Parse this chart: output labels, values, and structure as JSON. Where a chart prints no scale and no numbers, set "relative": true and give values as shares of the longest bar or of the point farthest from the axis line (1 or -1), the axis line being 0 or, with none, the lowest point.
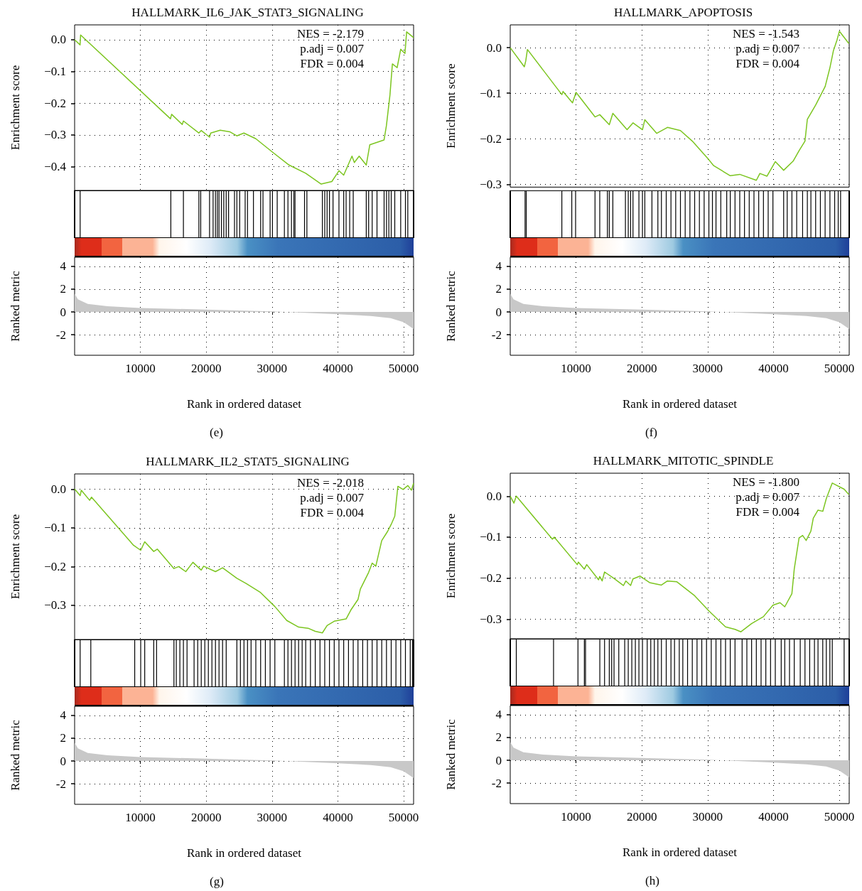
{
  "chart_data": [
    {
      "type": "line",
      "title": "HALLMARK_IL6_JAK_STAT3_SIGNALING",
      "ylabel": "Enrichment score",
      "annotations": [
        "NES = -2.179",
        "p.adj = 0.007",
        "FDR = 0.004"
      ],
      "xlim": [
        0,
        51500
      ],
      "xticks": [
        10000,
        20000,
        30000,
        40000,
        50000
      ],
      "ylim": [
        -0.475,
        0.047
      ],
      "yticks": [
        {
          "value": 0,
          "label": "0.0"
        },
        {
          "value": -0.1,
          "label": "−0.1"
        },
        {
          "value": -0.2,
          "label": "−0.2"
        },
        {
          "value": -0.3,
          "label": "−0.3"
        },
        {
          "value": -0.4,
          "label": "−0.4"
        }
      ],
      "tick_labels": "y",
      "grid": true,
      "marker": "none",
      "line_style": "solid",
      "series": [
        {
          "color": "#7cc520",
          "x": [
            0,
            830,
            910,
            14560,
            14740,
            16350,
            16530,
            18870,
            19230,
            20500,
            20680,
            22120,
            23560,
            24640,
            25720,
            27530,
            30050,
            32580,
            35110,
            37460,
            39080,
            40160,
            40880,
            42140,
            42500,
            43230,
            44310,
            44850,
            47010,
            47370,
            47910,
            48280,
            49000,
            49540,
            50190,
            50440,
            51500
          ],
          "values": [
            0.0,
            -0.016,
            0.015,
            -0.249,
            -0.235,
            -0.267,
            -0.256,
            -0.294,
            -0.286,
            -0.307,
            -0.294,
            -0.285,
            -0.29,
            -0.303,
            -0.294,
            -0.312,
            -0.354,
            -0.395,
            -0.421,
            -0.455,
            -0.447,
            -0.413,
            -0.427,
            -0.367,
            -0.387,
            -0.367,
            -0.395,
            -0.331,
            -0.316,
            -0.271,
            -0.174,
            -0.076,
            -0.088,
            -0.03,
            -0.043,
            0.025,
            0.007
          ]
        }
      ]
    },
    {
      "type": "bar",
      "relative": true,
      "xlim": [
        0,
        51500
      ],
      "tick_labels": false,
      "color": "#000000",
      "x": [
        840,
        14620,
        16530,
        18880,
        19160,
        20500,
        21040,
        21400,
        21690,
        21940,
        22300,
        22660,
        23030,
        23390,
        24290,
        24650,
        25080,
        25910,
        26270,
        27170,
        28260,
        28620,
        29700,
        30060,
        30780,
        31870,
        32410,
        32950,
        33310,
        33490,
        34930,
        35290,
        37640,
        38000,
        38360,
        38720,
        39260,
        40160,
        40880,
        41250,
        41790,
        42330,
        44310,
        44670,
        45210,
        45940,
        47020,
        47380,
        47740,
        48100,
        48640,
        49540,
        50260,
        50620
      ],
      "values": [
        1,
        1,
        1,
        1,
        1,
        1,
        1,
        1,
        1,
        1,
        1,
        1,
        1,
        1,
        1,
        1,
        1,
        1,
        1,
        1,
        1,
        1,
        1,
        1,
        1,
        1,
        1,
        1,
        1,
        1,
        1,
        1,
        1,
        1,
        1,
        1,
        1,
        1,
        1,
        1,
        1,
        1,
        1,
        1,
        1,
        1,
        1,
        1,
        1,
        1,
        1,
        1,
        1,
        1
      ]
    },
    {
      "type": "area",
      "xlabel": "Rank in ordered dataset",
      "ylabel": "Ranked metric",
      "annotations": [
        "(e)"
      ],
      "xlim": [
        0,
        51500
      ],
      "xticks": [
        10000,
        20000,
        30000,
        40000,
        50000
      ],
      "ylim": [
        -3.8,
        4.8
      ],
      "yticks": [
        4,
        2,
        0,
        -2
      ],
      "grid": true,
      "color": "#c8c8c8",
      "x": [
        0,
        500,
        2000,
        5000,
        10000,
        20000,
        30000,
        40000,
        45000,
        48000,
        50000,
        51500
      ],
      "values": [
        1.6,
        1.1,
        0.7,
        0.5,
        0.35,
        0.2,
        0.05,
        -0.2,
        -0.35,
        -0.55,
        -0.9,
        -1.5
      ]
    },
    {
      "type": "line",
      "title": "HALLMARK_APOPTOSIS",
      "ylabel": "Enrichment score",
      "annotations": [
        "NES = -1.543",
        "p.adj = 0.007",
        "FDR = 0.004"
      ],
      "xlim": [
        0,
        51500
      ],
      "xticks": [
        10000,
        20000,
        30000,
        40000,
        50000
      ],
      "ylim": [
        -0.306,
        0.05
      ],
      "yticks": [
        {
          "value": 0,
          "label": "0.0"
        },
        {
          "value": -0.1,
          "label": "−0.1"
        },
        {
          "value": -0.2,
          "label": "−0.2"
        },
        {
          "value": -0.3,
          "label": "−0.3"
        }
      ],
      "tick_labels": "y",
      "grid": true,
      "marker": "none",
      "line_style": "solid",
      "series": [
        {
          "color": "#7cc520",
          "x": [
            0,
            2140,
            2360,
            2610,
            7840,
            8020,
            9460,
            10000,
            12880,
            13600,
            15050,
            15590,
            17750,
            18650,
            20090,
            20450,
            22260,
            23880,
            25860,
            27660,
            30180,
            30910,
            33430,
            34870,
            37390,
            37930,
            39010,
            40280,
            41540,
            42980,
            43880,
            44780,
            45140,
            46400,
            47850,
            48570,
            49110,
            49650,
            50010,
            51450
          ],
          "values": [
            0,
            -0.042,
            -0.029,
            -0.004,
            -0.103,
            -0.096,
            -0.121,
            -0.098,
            -0.152,
            -0.147,
            -0.169,
            -0.144,
            -0.18,
            -0.165,
            -0.18,
            -0.158,
            -0.188,
            -0.175,
            -0.182,
            -0.205,
            -0.246,
            -0.259,
            -0.281,
            -0.278,
            -0.291,
            -0.276,
            -0.282,
            -0.25,
            -0.269,
            -0.249,
            -0.226,
            -0.205,
            -0.157,
            -0.126,
            -0.085,
            -0.044,
            -0.006,
            0.017,
            0.036,
            0.009
          ]
        }
      ]
    },
    {
      "type": "bar",
      "relative": true,
      "xlim": [
        0,
        51500
      ],
      "tick_labels": false,
      "color": "#000000",
      "x": [
        2250,
        2430,
        7840,
        9350,
        9930,
        12880,
        13600,
        14760,
        15050,
        15590,
        17500,
        17930,
        18290,
        18650,
        19550,
        20090,
        20450,
        21530,
        22430,
        22970,
        23700,
        24420,
        25140,
        25860,
        26580,
        27300,
        28020,
        28740,
        29460,
        30180,
        30720,
        31260,
        31990,
        32890,
        33430,
        34150,
        34870,
        35590,
        36310,
        37030,
        37750,
        38470,
        39190,
        39910,
        41540,
        42080,
        42800,
        43520,
        44420,
        45140,
        45680,
        46400,
        47120,
        47840,
        48570,
        49290,
        49830,
        50190
      ],
      "values": [
        1,
        1,
        1,
        1,
        1,
        1,
        1,
        1,
        1,
        1,
        1,
        1,
        1,
        1,
        1,
        1,
        1,
        1,
        1,
        1,
        1,
        1,
        1,
        1,
        1,
        1,
        1,
        1,
        1,
        1,
        1,
        1,
        1,
        1,
        1,
        1,
        1,
        1,
        1,
        1,
        1,
        1,
        1,
        1,
        1,
        1,
        1,
        1,
        1,
        1,
        1,
        1,
        1,
        1,
        1,
        1,
        1,
        1
      ]
    },
    {
      "type": "area",
      "xlabel": "Rank in ordered dataset",
      "ylabel": "Ranked metric",
      "annotations": [
        "(f)"
      ],
      "xlim": [
        0,
        51500
      ],
      "xticks": [
        10000,
        20000,
        30000,
        40000,
        50000
      ],
      "ylim": [
        -3.8,
        4.8
      ],
      "yticks": [
        4,
        2,
        0,
        -2
      ],
      "grid": true,
      "color": "#c8c8c8",
      "x": [
        0,
        500,
        2000,
        5000,
        10000,
        20000,
        30000,
        40000,
        45000,
        48000,
        50000,
        51500
      ],
      "values": [
        1.6,
        1.1,
        0.7,
        0.5,
        0.35,
        0.2,
        0.05,
        -0.2,
        -0.35,
        -0.55,
        -0.9,
        -1.5
      ]
    },
    {
      "type": "line",
      "title": "HALLMARK_IL2_STAT5_SIGNALING",
      "ylabel": "Enrichment score",
      "annotations": [
        "NES = -2.018",
        "p.adj = 0.007",
        "FDR = 0.004"
      ],
      "xlim": [
        0,
        51500
      ],
      "xticks": [
        10000,
        20000,
        30000,
        40000,
        50000
      ],
      "ylim": [
        -0.388,
        0.039
      ],
      "yticks": [
        {
          "value": 0,
          "label": "0.0"
        },
        {
          "value": -0.1,
          "label": "−0.1"
        },
        {
          "value": -0.2,
          "label": "−0.2"
        },
        {
          "value": -0.3,
          "label": "−0.3"
        }
      ],
      "tick_labels": "y",
      "grid": true,
      "marker": "none",
      "line_style": "solid",
      "series": [
        {
          "color": "#7cc520",
          "x": [
            0,
            840,
            1020,
            2280,
            2570,
            8950,
            10040,
            10650,
            12020,
            12560,
            15090,
            15810,
            16890,
            17970,
            19240,
            19600,
            21400,
            22480,
            24650,
            26090,
            28250,
            30420,
            32230,
            34030,
            35470,
            36560,
            37640,
            38360,
            39440,
            41250,
            41970,
            43050,
            43410,
            44670,
            45210,
            45760,
            46660,
            47560,
            48100,
            48640,
            49110,
            49900,
            50630,
            51170,
            51500
          ],
          "values": [
            0,
            -0.017,
            -0.003,
            -0.029,
            -0.021,
            -0.145,
            -0.158,
            -0.136,
            -0.161,
            -0.155,
            -0.205,
            -0.2,
            -0.213,
            -0.189,
            -0.209,
            -0.199,
            -0.213,
            -0.203,
            -0.23,
            -0.244,
            -0.267,
            -0.303,
            -0.339,
            -0.356,
            -0.359,
            -0.367,
            -0.371,
            -0.352,
            -0.341,
            -0.335,
            -0.312,
            -0.285,
            -0.258,
            -0.215,
            -0.191,
            -0.199,
            -0.133,
            -0.109,
            -0.091,
            -0.07,
            0.007,
            -0.001,
            0.009,
            -0.003,
            0.015
          ]
        }
      ]
    },
    {
      "type": "bar",
      "relative": true,
      "xlim": [
        0,
        51500
      ],
      "tick_labels": false,
      "color": "#000000",
      "x": [
        840,
        2460,
        9130,
        10040,
        10650,
        12020,
        12450,
        15090,
        15450,
        15990,
        16530,
        17080,
        18150,
        18700,
        19240,
        19780,
        20320,
        20860,
        21400,
        21940,
        22480,
        23030,
        24650,
        25190,
        25730,
        26270,
        26810,
        27530,
        28260,
        28980,
        29700,
        30420,
        31870,
        32410,
        32950,
        33490,
        34030,
        34570,
        35110,
        35830,
        36560,
        37280,
        38000,
        38720,
        39440,
        40160,
        40880,
        41610,
        42330,
        43050,
        43770,
        44490,
        45210,
        45940,
        46660,
        47380,
        48100,
        48820,
        49540,
        50260,
        50990,
        51350
      ],
      "values": [
        1,
        1,
        1,
        1,
        1,
        1,
        1,
        1,
        1,
        1,
        1,
        1,
        1,
        1,
        1,
        1,
        1,
        1,
        1,
        1,
        1,
        1,
        1,
        1,
        1,
        1,
        1,
        1,
        1,
        1,
        1,
        1,
        1,
        1,
        1,
        1,
        1,
        1,
        1,
        1,
        1,
        1,
        1,
        1,
        1,
        1,
        1,
        1,
        1,
        1,
        1,
        1,
        1,
        1,
        1,
        1,
        1,
        1,
        1,
        1,
        1,
        1
      ]
    },
    {
      "type": "area",
      "xlabel": "Rank in ordered dataset",
      "ylabel": "Ranked metric",
      "annotations": [
        "(g)"
      ],
      "xlim": [
        0,
        51500
      ],
      "xticks": [
        10000,
        20000,
        30000,
        40000,
        50000
      ],
      "ylim": [
        -3.8,
        4.8
      ],
      "yticks": [
        4,
        2,
        0,
        -2
      ],
      "grid": true,
      "color": "#c8c8c8",
      "x": [
        0,
        500,
        2000,
        5000,
        10000,
        20000,
        30000,
        40000,
        45000,
        48000,
        50000,
        51500
      ],
      "values": [
        1.6,
        1.1,
        0.7,
        0.5,
        0.35,
        0.2,
        0.05,
        -0.2,
        -0.35,
        -0.55,
        -0.9,
        -1.5
      ]
    },
    {
      "type": "line",
      "title": "HALLMARK_MITOTIC_SPINDLE",
      "ylabel": "Enrichment score",
      "annotations": [
        "NES = -1.800",
        "p.adj = 0.007",
        "FDR = 0.004"
      ],
      "xlim": [
        0,
        51500
      ],
      "xticks": [
        10000,
        20000,
        30000,
        40000,
        50000
      ],
      "ylim": [
        -0.348,
        0.056
      ],
      "yticks": [
        {
          "value": 0,
          "label": "0.0"
        },
        {
          "value": -0.1,
          "label": "−0.1"
        },
        {
          "value": -0.2,
          "label": "−0.2"
        },
        {
          "value": -0.3,
          "label": "−0.3"
        }
      ],
      "tick_labels": "y",
      "grid": true,
      "marker": "none",
      "line_style": "solid",
      "series": [
        {
          "color": "#7cc520",
          "x": [
            0,
            560,
            920,
            6400,
            6690,
            10180,
            10360,
            11260,
            11620,
            13420,
            13600,
            13970,
            14330,
            15770,
            17210,
            17570,
            18290,
            18650,
            19730,
            21170,
            22970,
            23880,
            25320,
            28020,
            30180,
            32710,
            34150,
            35050,
            36670,
            38470,
            39910,
            40990,
            41710,
            42790,
            43150,
            43880,
            44420,
            44960,
            45680,
            46040,
            46760,
            47490,
            48020,
            48490,
            48930,
            50730,
            51450
          ],
          "values": [
            0,
            -0.017,
            0,
            -0.105,
            -0.1,
            -0.167,
            -0.161,
            -0.178,
            -0.167,
            -0.204,
            -0.196,
            -0.207,
            -0.185,
            -0.201,
            -0.218,
            -0.207,
            -0.218,
            -0.202,
            -0.195,
            -0.211,
            -0.217,
            -0.207,
            -0.209,
            -0.243,
            -0.28,
            -0.319,
            -0.325,
            -0.331,
            -0.311,
            -0.294,
            -0.266,
            -0.26,
            -0.27,
            -0.238,
            -0.178,
            -0.102,
            -0.096,
            -0.108,
            -0.085,
            -0.054,
            -0.034,
            -0.037,
            -0.006,
            0.014,
            0.032,
            0.017,
            0.004
          ]
        }
      ]
    },
    {
      "type": "bar",
      "relative": true,
      "xlim": [
        0,
        51500
      ],
      "tick_labels": false,
      "color": "#000000",
      "x": [
        920,
        6580,
        10290,
        11260,
        11440,
        13610,
        14330,
        15050,
        15410,
        15770,
        16490,
        17390,
        17930,
        18470,
        19010,
        19550,
        20090,
        20810,
        21350,
        21890,
        22430,
        22970,
        23700,
        24420,
        24960,
        25680,
        26220,
        26940,
        27660,
        28380,
        29100,
        29820,
        30540,
        31260,
        31990,
        32710,
        33430,
        34150,
        35230,
        35950,
        36670,
        37390,
        38110,
        38830,
        39550,
        40270,
        41170,
        41710,
        42430,
        43150,
        44060,
        44780,
        45500,
        46220,
        46760,
        47480,
        48020,
        48560,
        48930,
        50730
      ],
      "values": [
        1,
        1,
        1,
        1,
        1,
        1,
        1,
        1,
        1,
        1,
        1,
        1,
        1,
        1,
        1,
        1,
        1,
        1,
        1,
        1,
        1,
        1,
        1,
        1,
        1,
        1,
        1,
        1,
        1,
        1,
        1,
        1,
        1,
        1,
        1,
        1,
        1,
        1,
        1,
        1,
        1,
        1,
        1,
        1,
        1,
        1,
        1,
        1,
        1,
        1,
        1,
        1,
        1,
        1,
        1,
        1,
        1,
        1,
        1,
        1
      ]
    },
    {
      "type": "area",
      "xlabel": "Rank in ordered dataset",
      "ylabel": "Ranked metric",
      "annotations": [
        "(h)"
      ],
      "xlim": [
        0,
        51500
      ],
      "xticks": [
        10000,
        20000,
        30000,
        40000,
        50000
      ],
      "ylim": [
        -3.8,
        4.8
      ],
      "yticks": [
        4,
        2,
        0,
        -2
      ],
      "grid": true,
      "color": "#c8c8c8",
      "x": [
        0,
        500,
        2000,
        5000,
        10000,
        20000,
        30000,
        40000,
        45000,
        48000,
        50000,
        51500
      ],
      "values": [
        1.6,
        1.1,
        0.7,
        0.5,
        0.35,
        0.2,
        0.05,
        -0.2,
        -0.35,
        -0.55,
        -0.9,
        -1.5
      ]
    }
  ]
}
